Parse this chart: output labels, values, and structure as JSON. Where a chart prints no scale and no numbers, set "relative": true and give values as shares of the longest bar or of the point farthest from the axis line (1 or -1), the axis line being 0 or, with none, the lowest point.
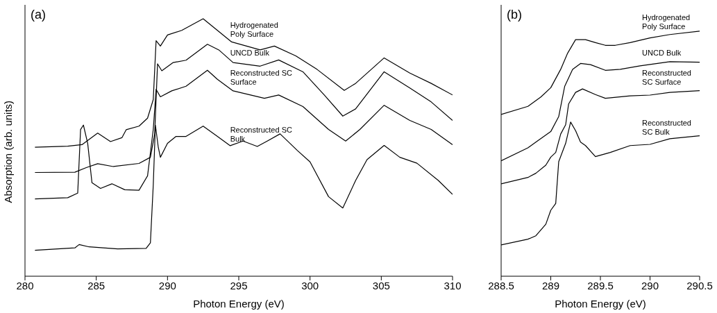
{
  "chart_data": [
    {
      "type": "line",
      "title": "(a)",
      "xlabel": "Photon Energy (eV)",
      "ylabel": "Absorption (arb. units)",
      "relative": true,
      "xlim": [
        280,
        310
      ],
      "xticks": [
        280,
        285,
        290,
        295,
        300,
        305,
        310
      ],
      "series": [
        {
          "name": "Hydrogenated Poly Surface",
          "color": "#000000",
          "x": [
            280.7,
            283,
            284,
            285.1,
            286,
            286.8,
            287.1,
            288,
            288.6,
            289,
            289.2,
            289.5,
            290,
            291,
            292.5,
            293.5,
            294.5,
            296.5,
            297.5,
            299,
            300.5,
            302.4,
            303.2,
            305.2,
            307,
            308.5,
            310
          ],
          "values": [
            0.501,
            0.505,
            0.511,
            0.556,
            0.523,
            0.538,
            0.569,
            0.583,
            0.614,
            0.686,
            0.915,
            0.894,
            0.937,
            0.955,
            1.0,
            0.955,
            0.91,
            0.879,
            0.894,
            0.856,
            0.803,
            0.722,
            0.749,
            0.848,
            0.789,
            0.749,
            0.704
          ]
        },
        {
          "name": "UNCD Bulk",
          "color": "#000000",
          "x": [
            280.7,
            283.5,
            284.3,
            285.1,
            286.2,
            288,
            288.8,
            289.1,
            289.3,
            289.6,
            290.4,
            291.3,
            292.8,
            293.6,
            294.6,
            296.5,
            297.8,
            299.5,
            301,
            302.3,
            303.2,
            305.2,
            307,
            308.5,
            310
          ],
          "values": [
            0.403,
            0.404,
            0.422,
            0.437,
            0.426,
            0.438,
            0.462,
            0.552,
            0.825,
            0.798,
            0.83,
            0.839,
            0.901,
            0.879,
            0.83,
            0.816,
            0.84,
            0.794,
            0.704,
            0.622,
            0.65,
            0.794,
            0.731,
            0.677,
            0.605
          ]
        },
        {
          "name": "Reconstructed SC Surface",
          "color": "#000000",
          "x": [
            280.7,
            283,
            283.7,
            283.9,
            284.1,
            284.4,
            284.7,
            285.3,
            286.1,
            287,
            288,
            288.6,
            289,
            289.2,
            289.5,
            290.3,
            291.3,
            292.8,
            293.5,
            294.6,
            296.8,
            297.8,
            299.5,
            301.3,
            302.5,
            303.5,
            305.2,
            307,
            308.5,
            310
          ],
          "values": [
            0.3,
            0.305,
            0.323,
            0.57,
            0.587,
            0.516,
            0.363,
            0.341,
            0.359,
            0.336,
            0.334,
            0.39,
            0.57,
            0.726,
            0.697,
            0.72,
            0.738,
            0.8,
            0.765,
            0.72,
            0.691,
            0.704,
            0.659,
            0.57,
            0.525,
            0.57,
            0.664,
            0.605,
            0.57,
            0.511
          ]
        },
        {
          "name": "Reconstructed SC Bulk",
          "color": "#000000",
          "x": [
            280.7,
            283.5,
            283.8,
            284.5,
            286.5,
            288.5,
            288.8,
            289,
            289.15,
            289.35,
            289.5,
            290,
            290.6,
            291.3,
            292.5,
            293.5,
            294.4,
            295.3,
            296.3,
            297,
            297.9,
            299.1,
            300,
            301.3,
            302.3,
            303.2,
            304,
            305.2,
            306.3,
            307.5,
            309,
            310
          ],
          "values": [
            0.101,
            0.11,
            0.123,
            0.114,
            0.106,
            0.108,
            0.13,
            0.354,
            0.587,
            0.502,
            0.462,
            0.516,
            0.543,
            0.543,
            0.583,
            0.543,
            0.507,
            0.525,
            0.504,
            0.525,
            0.553,
            0.489,
            0.444,
            0.309,
            0.265,
            0.372,
            0.453,
            0.508,
            0.462,
            0.439,
            0.372,
            0.318
          ]
        }
      ]
    },
    {
      "type": "line",
      "title": "(b)",
      "xlabel": "Photon Energy (eV)",
      "relative": true,
      "xlim": [
        288.5,
        290.5
      ],
      "xticks": [
        288.5,
        289,
        289.5,
        290,
        290.5
      ],
      "series": [
        {
          "name": "Hydrogenated Poly Surface",
          "color": "#000000",
          "x": [
            288.5,
            288.77,
            288.9,
            289,
            289.1,
            289.17,
            289.25,
            289.35,
            289.45,
            289.55,
            289.65,
            289.8,
            290,
            290.2,
            290.5
          ],
          "values": [
            0.66,
            0.693,
            0.731,
            0.769,
            0.844,
            0.91,
            0.965,
            0.965,
            0.953,
            0.942,
            0.942,
            0.953,
            0.972,
            0.986,
            1.0
          ]
        },
        {
          "name": "UNCD Bulk",
          "color": "#000000",
          "x": [
            288.5,
            288.77,
            288.85,
            289,
            289.08,
            289.14,
            289.22,
            289.3,
            289.4,
            289.55,
            289.7,
            289.9,
            290.2,
            290.5
          ],
          "values": [
            0.471,
            0.524,
            0.547,
            0.59,
            0.651,
            0.774,
            0.844,
            0.868,
            0.863,
            0.84,
            0.844,
            0.858,
            0.875,
            0.873
          ]
        },
        {
          "name": "Reconstructed SC Surface",
          "color": "#000000",
          "x": [
            288.5,
            288.77,
            288.85,
            288.95,
            289,
            289.05,
            289.1,
            289.15,
            289.18,
            289.25,
            289.32,
            289.45,
            289.55,
            289.8,
            290,
            290.2,
            290.5
          ],
          "values": [
            0.377,
            0.403,
            0.42,
            0.453,
            0.486,
            0.505,
            0.58,
            0.618,
            0.703,
            0.75,
            0.764,
            0.741,
            0.726,
            0.736,
            0.739,
            0.75,
            0.757
          ]
        },
        {
          "name": "Reconstructed SC Bulk",
          "color": "#000000",
          "x": [
            288.5,
            288.77,
            288.85,
            288.95,
            289,
            289.05,
            289.08,
            289.15,
            289.2,
            289.25,
            289.3,
            289.35,
            289.45,
            289.6,
            289.8,
            290,
            290.2,
            290.5
          ],
          "values": [
            0.128,
            0.151,
            0.165,
            0.212,
            0.269,
            0.297,
            0.467,
            0.542,
            0.629,
            0.594,
            0.547,
            0.533,
            0.488,
            0.505,
            0.533,
            0.538,
            0.561,
            0.573
          ]
        }
      ]
    }
  ]
}
